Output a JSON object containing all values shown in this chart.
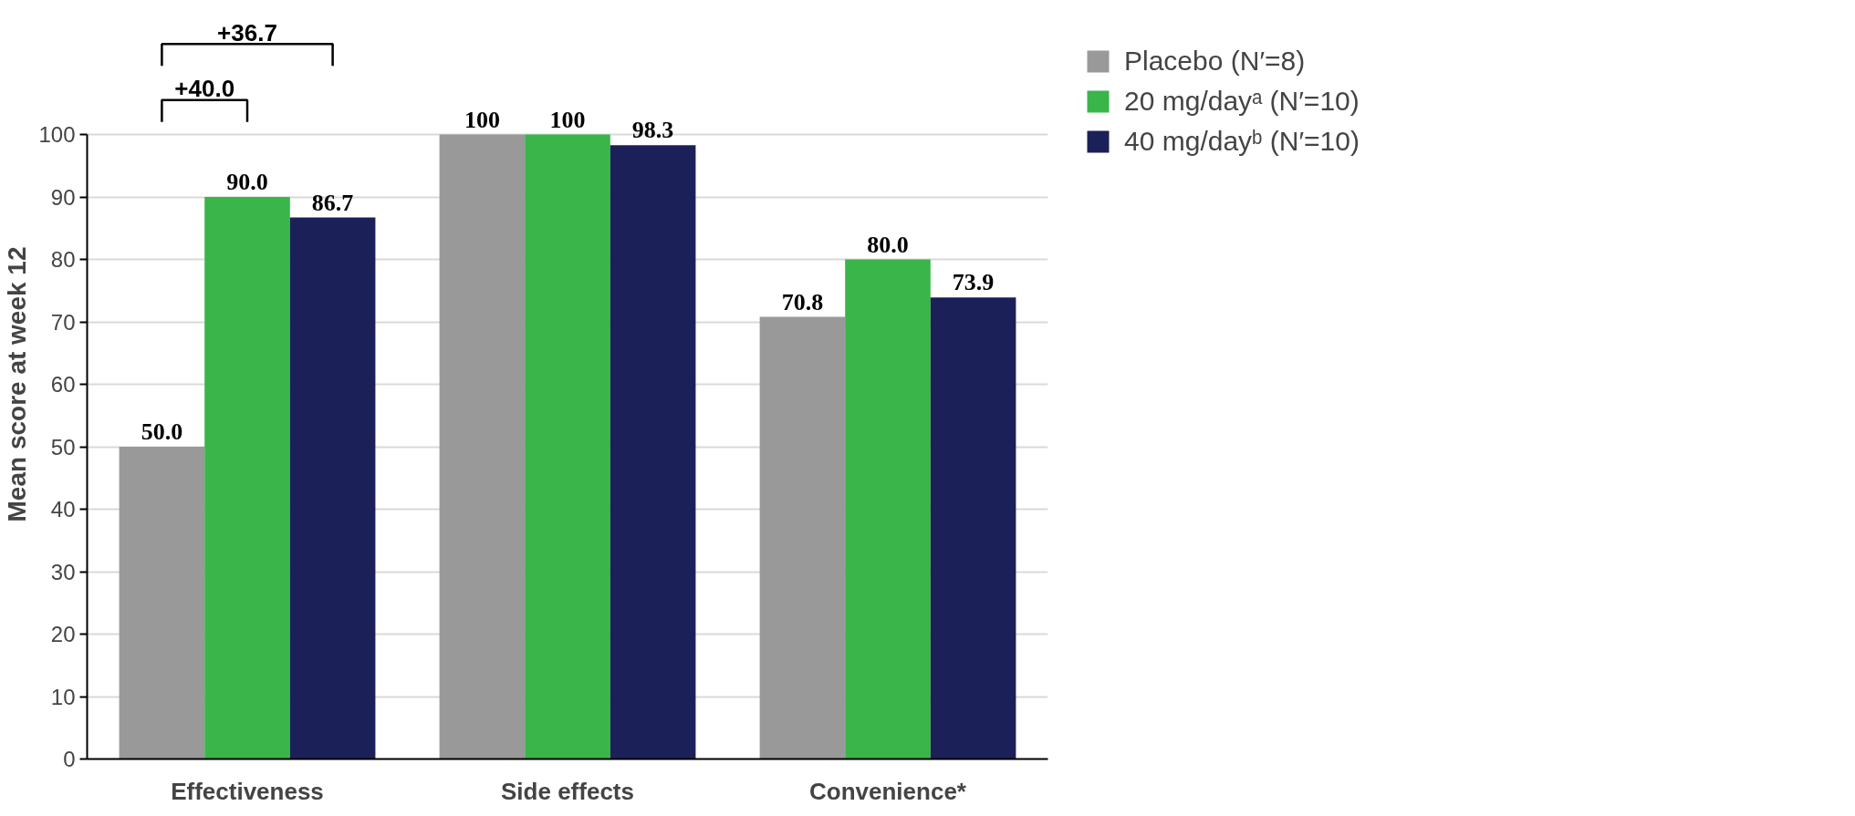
{
  "chart_data": {
    "type": "bar",
    "ylabel": "Mean score at week 12",
    "categories": [
      "Effectiveness",
      "Side effects",
      "Convenience*"
    ],
    "series": [
      {
        "name": "Placebo (N′=8)",
        "color": "#999999",
        "values": [
          50.0,
          100,
          70.8
        ],
        "value_labels": [
          "50.0",
          "100",
          "70.8"
        ]
      },
      {
        "name": "20 mg/dayᵃ (N′=10)",
        "color": "#39b54a",
        "values": [
          90.0,
          100,
          80.0
        ],
        "value_labels": [
          "90.0",
          "100",
          "80.0"
        ]
      },
      {
        "name": "40 mg/dayᵇ (N′=10)",
        "color": "#1c2058",
        "values": [
          86.7,
          98.3,
          73.9
        ],
        "value_labels": [
          "86.7",
          "98.3",
          "73.9"
        ]
      }
    ],
    "ylim": [
      0,
      100
    ],
    "yticks": [
      0,
      10,
      20,
      30,
      40,
      50,
      60,
      70,
      80,
      90,
      100
    ],
    "grid": "y",
    "legend": "right",
    "annotations": [
      "+40.0",
      "+36.7"
    ]
  }
}
